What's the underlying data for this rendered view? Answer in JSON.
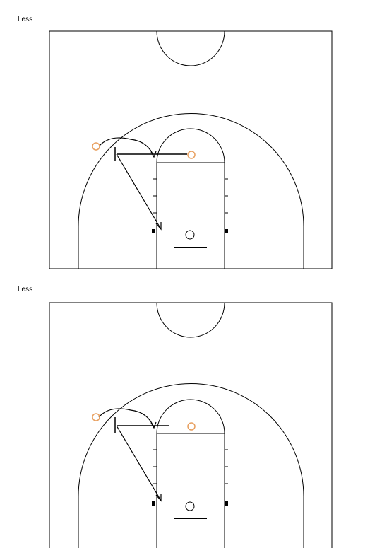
{
  "diagrams": [
    {
      "label": "Less"
    },
    {
      "label": "Less"
    }
  ],
  "colors": {
    "line": "#000000",
    "player": "#e8a060"
  },
  "icons": {
    "player": "player-circle-icon",
    "screen": "screen-marker-icon",
    "basket": "basket-icon"
  }
}
